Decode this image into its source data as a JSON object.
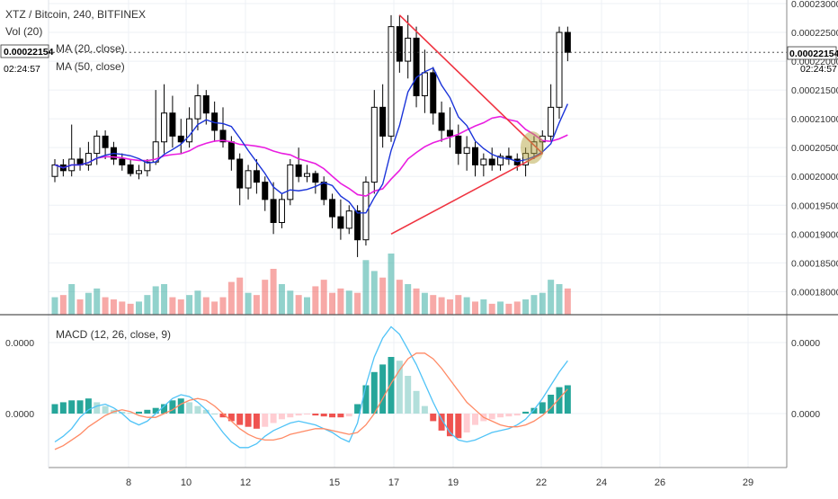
{
  "legend": {
    "symbol": "XTZ / Bitcoin, 240, BITFINEX",
    "vol": "Vol (20)",
    "ma20": "MA (20, close)",
    "ma50": "MA (50, close)",
    "macd": "MACD (12, 26, close, 9)"
  },
  "price_tag": {
    "value": "0.00022154",
    "countdown": "02:24:57"
  },
  "price_axis_labels": [
    "0.00023000",
    "0.00022500",
    "0.00022000",
    "0.00021500",
    "0.00021000",
    "0.00020500",
    "0.00020000",
    "0.00019500",
    "0.00019000",
    "0.00018500",
    "0.00018000"
  ],
  "macd_axis_labels": [
    "0.0000",
    "0.0000"
  ],
  "time_axis_labels": [
    "8",
    "10",
    "12",
    "15",
    "17",
    "19",
    "22",
    "24",
    "26",
    "29"
  ],
  "colors": {
    "up": "#26a69a",
    "down": "#ef5350",
    "ma20": "#1a33d9",
    "ma50": "#e91ee0",
    "trendline": "#ef3340",
    "macd": "#4fc3f7",
    "signal": "#ff8a65",
    "grid": "#eef1f5",
    "circle": "#b5a642"
  },
  "chart_data": {
    "type": "candlestick",
    "title": "XTZ / Bitcoin, 240, BITFINEX",
    "x_ticks": [
      "8",
      "10",
      "12",
      "15",
      "17",
      "19",
      "22",
      "24",
      "26",
      "29"
    ],
    "y_range": [
      0.000176,
      0.00023
    ],
    "last_price": 0.00022154,
    "candles": [
      {
        "o": 0.0002,
        "h": 0.000203,
        "l": 0.000199,
        "c": 0.000202
      },
      {
        "o": 0.000202,
        "h": 0.000203,
        "l": 0.0002,
        "c": 0.000201
      },
      {
        "o": 0.000201,
        "h": 0.000209,
        "l": 0.0002,
        "c": 0.000203
      },
      {
        "o": 0.000203,
        "h": 0.000205,
        "l": 0.000201,
        "c": 0.000202
      },
      {
        "o": 0.000202,
        "h": 0.000206,
        "l": 0.000201,
        "c": 0.000204
      },
      {
        "o": 0.000204,
        "h": 0.000208,
        "l": 0.000202,
        "c": 0.000207
      },
      {
        "o": 0.000207,
        "h": 0.000208,
        "l": 0.000203,
        "c": 0.000205
      },
      {
        "o": 0.000205,
        "h": 0.000206,
        "l": 0.000202,
        "c": 0.000203
      },
      {
        "o": 0.000203,
        "h": 0.000204,
        "l": 0.000201,
        "c": 0.000202
      },
      {
        "o": 0.000202,
        "h": 0.000203,
        "l": 0.0002,
        "c": 0.0002005
      },
      {
        "o": 0.0002005,
        "h": 0.000202,
        "l": 0.0001995,
        "c": 0.000201
      },
      {
        "o": 0.000201,
        "h": 0.000203,
        "l": 0.0002,
        "c": 0.0002025
      },
      {
        "o": 0.0002025,
        "h": 0.000215,
        "l": 0.000202,
        "c": 0.000206
      },
      {
        "o": 0.000206,
        "h": 0.000216,
        "l": 0.000204,
        "c": 0.000211
      },
      {
        "o": 0.000211,
        "h": 0.000214,
        "l": 0.000205,
        "c": 0.000207
      },
      {
        "o": 0.000207,
        "h": 0.00021,
        "l": 0.000204,
        "c": 0.000206
      },
      {
        "o": 0.000206,
        "h": 0.000212,
        "l": 0.000205,
        "c": 0.00021
      },
      {
        "o": 0.00021,
        "h": 0.000216,
        "l": 0.000208,
        "c": 0.000214
      },
      {
        "o": 0.000214,
        "h": 0.000215,
        "l": 0.000209,
        "c": 0.000211
      },
      {
        "o": 0.000211,
        "h": 0.000213,
        "l": 0.000206,
        "c": 0.000208
      },
      {
        "o": 0.000208,
        "h": 0.000212,
        "l": 0.000205,
        "c": 0.000206
      },
      {
        "o": 0.000206,
        "h": 0.000207,
        "l": 0.000201,
        "c": 0.000203
      },
      {
        "o": 0.000203,
        "h": 0.000204,
        "l": 0.000195,
        "c": 0.000198
      },
      {
        "o": 0.000198,
        "h": 0.000202,
        "l": 0.000196,
        "c": 0.000201
      },
      {
        "o": 0.000201,
        "h": 0.000203,
        "l": 0.000197,
        "c": 0.000199
      },
      {
        "o": 0.000199,
        "h": 0.0002,
        "l": 0.000194,
        "c": 0.000196
      },
      {
        "o": 0.000196,
        "h": 0.000199,
        "l": 0.00019,
        "c": 0.000192
      },
      {
        "o": 0.000192,
        "h": 0.000197,
        "l": 0.000191,
        "c": 0.000196
      },
      {
        "o": 0.000196,
        "h": 0.000203,
        "l": 0.000195,
        "c": 0.000202
      },
      {
        "o": 0.000202,
        "h": 0.000205,
        "l": 0.000199,
        "c": 0.0002
      },
      {
        "o": 0.0002,
        "h": 0.000202,
        "l": 0.000199,
        "c": 0.0002005
      },
      {
        "o": 0.0002005,
        "h": 0.000201,
        "l": 0.000197,
        "c": 0.000199
      },
      {
        "o": 0.000199,
        "h": 0.0002,
        "l": 0.000195,
        "c": 0.000196
      },
      {
        "o": 0.000196,
        "h": 0.000197,
        "l": 0.000191,
        "c": 0.000193
      },
      {
        "o": 0.000193,
        "h": 0.000196,
        "l": 0.000189,
        "c": 0.000191
      },
      {
        "o": 0.000191,
        "h": 0.000195,
        "l": 0.00019,
        "c": 0.000194
      },
      {
        "o": 0.000194,
        "h": 0.000195,
        "l": 0.000186,
        "c": 0.000189
      },
      {
        "o": 0.000189,
        "h": 0.0002,
        "l": 0.000188,
        "c": 0.000199
      },
      {
        "o": 0.000199,
        "h": 0.000215,
        "l": 0.000197,
        "c": 0.000212
      },
      {
        "o": 0.000212,
        "h": 0.000216,
        "l": 0.000205,
        "c": 0.000207
      },
      {
        "o": 0.000207,
        "h": 0.000228,
        "l": 0.000206,
        "c": 0.000226
      },
      {
        "o": 0.000226,
        "h": 0.000228,
        "l": 0.000218,
        "c": 0.00022
      },
      {
        "o": 0.00022,
        "h": 0.000228,
        "l": 0.000217,
        "c": 0.000224
      },
      {
        "o": 0.000224,
        "h": 0.000226,
        "l": 0.000212,
        "c": 0.000214
      },
      {
        "o": 0.000214,
        "h": 0.000222,
        "l": 0.000211,
        "c": 0.000218
      },
      {
        "o": 0.000218,
        "h": 0.000219,
        "l": 0.000209,
        "c": 0.000211
      },
      {
        "o": 0.000211,
        "h": 0.000213,
        "l": 0.000206,
        "c": 0.000208
      },
      {
        "o": 0.000208,
        "h": 0.000212,
        "l": 0.000205,
        "c": 0.000207
      },
      {
        "o": 0.000207,
        "h": 0.000209,
        "l": 0.000202,
        "c": 0.000204
      },
      {
        "o": 0.000204,
        "h": 0.000207,
        "l": 0.000201,
        "c": 0.000205
      },
      {
        "o": 0.000205,
        "h": 0.000206,
        "l": 0.0002,
        "c": 0.000202
      },
      {
        "o": 0.000202,
        "h": 0.000204,
        "l": 0.0002,
        "c": 0.000203
      },
      {
        "o": 0.000203,
        "h": 0.000205,
        "l": 0.000201,
        "c": 0.000202
      },
      {
        "o": 0.000202,
        "h": 0.000204,
        "l": 0.000201,
        "c": 0.0002035
      },
      {
        "o": 0.0002035,
        "h": 0.000205,
        "l": 0.000202,
        "c": 0.000203
      },
      {
        "o": 0.000203,
        "h": 0.000204,
        "l": 0.000201,
        "c": 0.000202
      },
      {
        "o": 0.000202,
        "h": 0.000205,
        "l": 0.0002,
        "c": 0.000204
      },
      {
        "o": 0.000204,
        "h": 0.000207,
        "l": 0.000203,
        "c": 0.000206
      },
      {
        "o": 0.000206,
        "h": 0.000208,
        "l": 0.000204,
        "c": 0.000207
      },
      {
        "o": 0.000207,
        "h": 0.000216,
        "l": 0.000206,
        "c": 0.000212
      },
      {
        "o": 0.000212,
        "h": 0.000226,
        "l": 0.00021,
        "c": 0.000225
      },
      {
        "o": 0.000225,
        "h": 0.000226,
        "l": 0.00022,
        "c": 0.00022154
      }
    ],
    "volume": [
      8,
      9,
      14,
      7,
      10,
      12,
      8,
      7,
      6,
      5,
      6,
      9,
      13,
      14,
      8,
      7,
      9,
      11,
      8,
      6,
      8,
      15,
      17,
      10,
      9,
      16,
      21,
      14,
      11,
      9,
      8,
      13,
      16,
      10,
      12,
      11,
      10,
      25,
      20,
      17,
      28,
      16,
      14,
      12,
      10,
      9,
      8,
      7,
      9,
      8,
      6,
      7,
      5,
      6,
      5,
      6,
      7,
      9,
      10,
      16,
      14,
      12
    ],
    "macd_hist": [
      0.5,
      0.6,
      0.7,
      0.7,
      0.8,
      0.6,
      0.4,
      0.2,
      0.1,
      0.05,
      0.1,
      0.2,
      0.3,
      0.5,
      0.7,
      0.8,
      0.6,
      0.4,
      0.2,
      0.0,
      -0.2,
      -0.4,
      -0.6,
      -0.7,
      -0.8,
      -0.7,
      -0.5,
      -0.3,
      -0.2,
      -0.1,
      -0.05,
      -0.1,
      -0.15,
      -0.2,
      -0.2,
      -0.15,
      0.5,
      1.5,
      2.2,
      2.6,
      3.0,
      2.8,
      2.0,
      1.2,
      0.4,
      -0.4,
      -0.9,
      -1.2,
      -1.3,
      -1.0,
      -0.6,
      -0.4,
      -0.3,
      -0.2,
      -0.15,
      -0.1,
      0.1,
      0.3,
      0.6,
      1.0,
      1.4,
      1.5
    ],
    "macd_line": [
      -1.5,
      -1.2,
      -0.8,
      -0.2,
      0.2,
      0.4,
      0.5,
      0.3,
      0.0,
      -0.4,
      -0.6,
      -0.4,
      0.0,
      0.4,
      0.8,
      1.0,
      0.9,
      0.6,
      0.2,
      -0.4,
      -1.0,
      -1.5,
      -1.8,
      -1.8,
      -1.6,
      -1.2,
      -0.9,
      -0.7,
      -0.5,
      -0.4,
      -0.5,
      -0.6,
      -0.8,
      -1.0,
      -1.3,
      -1.5,
      -0.5,
      1.5,
      3.0,
      4.0,
      4.6,
      4.2,
      3.4,
      2.6,
      1.6,
      0.6,
      -0.3,
      -1.0,
      -1.4,
      -1.5,
      -1.4,
      -1.2,
      -1.0,
      -0.9,
      -0.8,
      -0.6,
      -0.3,
      0.2,
      0.8,
      1.5,
      2.2,
      2.8
    ],
    "signal_line": [
      -1.9,
      -1.7,
      -1.4,
      -1.1,
      -0.7,
      -0.4,
      -0.1,
      0.1,
      0.2,
      0.1,
      -0.1,
      -0.2,
      -0.2,
      0.0,
      0.2,
      0.5,
      0.7,
      0.8,
      0.7,
      0.4,
      0.0,
      -0.4,
      -0.8,
      -1.1,
      -1.3,
      -1.4,
      -1.4,
      -1.3,
      -1.1,
      -1.0,
      -0.9,
      -0.8,
      -0.8,
      -0.9,
      -1.0,
      -1.1,
      -1.0,
      -0.6,
      0.0,
      0.8,
      1.6,
      2.3,
      2.9,
      3.2,
      3.2,
      2.9,
      2.4,
      1.8,
      1.2,
      0.6,
      0.2,
      -0.2,
      -0.4,
      -0.6,
      -0.7,
      -0.7,
      -0.6,
      -0.4,
      -0.1,
      0.3,
      0.8,
      1.3
    ],
    "trendlines": [
      {
        "from": [
          40,
          0.00019
        ],
        "to": [
          58,
          0.000204
        ]
      },
      {
        "from": [
          41,
          0.000228
        ],
        "to": [
          58,
          0.000204
        ]
      }
    ],
    "highlight_candle": 57
  }
}
